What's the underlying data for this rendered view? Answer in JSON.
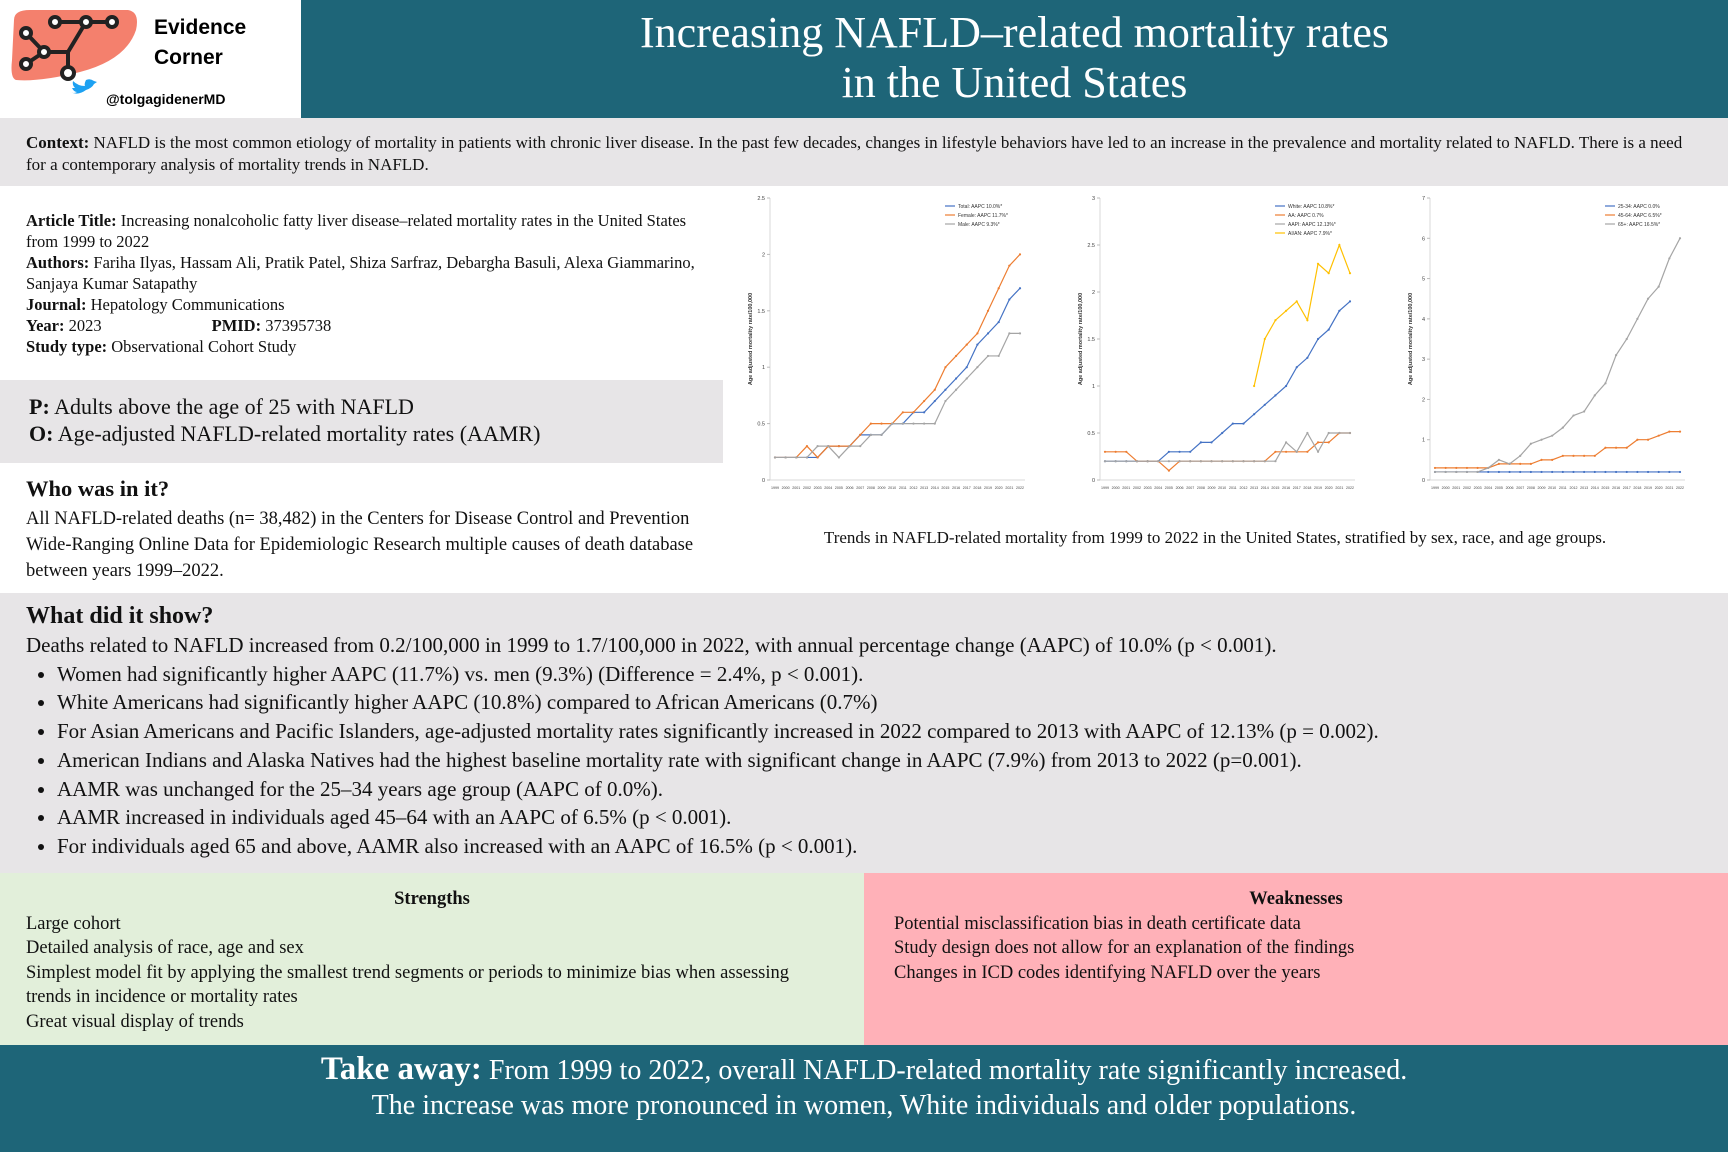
{
  "header": {
    "brand_line1": "Evidence",
    "brand_line2": "Corner",
    "handle": "@tolgagidenerMD",
    "title_line1": "Increasing NAFLD–related mortality rates",
    "title_line2": "in the United States"
  },
  "context": {
    "label": "Context:",
    "text": "NAFLD is the most common etiology of mortality in patients with chronic liver disease. In the past few decades, changes in lifestyle behaviors have led to an increase in the prevalence and mortality related to NAFLD. There is a need for a contemporary analysis of mortality trends in NAFLD."
  },
  "article": {
    "title_label": "Article Title:",
    "title": "Increasing nonalcoholic fatty liver disease–related mortality rates in the United States from 1999 to 2022",
    "authors_label": "Authors:",
    "authors": "Fariha Ilyas, Hassam Ali, Pratik Patel, Shiza Sarfraz, Debargha Basuli, Alexa Giammarino, Sanjaya Kumar Satapathy",
    "journal_label": "Journal:",
    "journal": "Hepatology Communications",
    "year_label": "Year:",
    "year": "2023",
    "pmid_label": "PMID:",
    "pmid": "37395738",
    "study_type_label": "Study type:",
    "study_type": "Observational Cohort Study"
  },
  "po": {
    "p_label": "P:",
    "p": "Adults above the age of 25 with NAFLD",
    "o_label": "O:",
    "o": "Age-adjusted NAFLD-related mortality rates (AAMR)"
  },
  "who": {
    "heading": "Who was in it?",
    "text": "All NAFLD-related deaths (n= 38,482) in the Centers for Disease Control and Prevention Wide-Ranging Online Data for Epidemiologic Research multiple causes of death database between years 1999–2022."
  },
  "chart_data": [
    {
      "type": "line",
      "y_label": "Age adjusted mortality rate/100,000",
      "categories": [
        "1999",
        "2000",
        "2001",
        "2002",
        "2003",
        "2004",
        "2005",
        "2006",
        "2007",
        "2008",
        "2009",
        "2010",
        "2011",
        "2012",
        "2013",
        "2014",
        "2015",
        "2016",
        "2017",
        "2018",
        "2019",
        "2020",
        "2021",
        "2022"
      ],
      "ylim": [
        0,
        2.5
      ],
      "yticks": [
        0,
        0.5,
        1,
        1.5,
        2,
        2.5
      ],
      "legend": "top-right",
      "series": [
        {
          "name": "Total: AAPC 10.0%*",
          "color": "#4472c4",
          "values": [
            0.2,
            0.2,
            0.2,
            0.2,
            0.2,
            0.3,
            0.3,
            0.3,
            0.4,
            0.4,
            0.4,
            0.5,
            0.5,
            0.6,
            0.6,
            0.7,
            0.8,
            0.9,
            1.0,
            1.2,
            1.3,
            1.4,
            1.6,
            1.7
          ]
        },
        {
          "name": "Female: AAPC 11.7%*",
          "color": "#ed7d31",
          "values": [
            0.2,
            0.2,
            0.2,
            0.3,
            0.2,
            0.3,
            0.3,
            0.3,
            0.4,
            0.5,
            0.5,
            0.5,
            0.6,
            0.6,
            0.7,
            0.8,
            1.0,
            1.1,
            1.2,
            1.3,
            1.5,
            1.7,
            1.9,
            2.0
          ]
        },
        {
          "name": "Male: AAPC 9.3%*",
          "color": "#a5a5a5",
          "values": [
            0.2,
            0.2,
            0.2,
            0.2,
            0.3,
            0.3,
            0.2,
            0.3,
            0.3,
            0.4,
            0.4,
            0.5,
            0.5,
            0.5,
            0.5,
            0.5,
            0.7,
            0.8,
            0.9,
            1.0,
            1.1,
            1.1,
            1.3,
            1.3
          ]
        }
      ]
    },
    {
      "type": "line",
      "y_label": "Age adjusted mortality rate/100,000",
      "categories": [
        "1999",
        "2000",
        "2001",
        "2002",
        "2003",
        "2004",
        "2005",
        "2006",
        "2007",
        "2008",
        "2009",
        "2010",
        "2011",
        "2012",
        "2013",
        "2014",
        "2015",
        "2016",
        "2017",
        "2018",
        "2019",
        "2020",
        "2021",
        "2022"
      ],
      "ylim": [
        0,
        3
      ],
      "yticks": [
        0,
        0.5,
        1,
        1.5,
        2,
        2.5,
        3
      ],
      "legend": "top-right",
      "series": [
        {
          "name": "White: AAPC 10.8%*",
          "color": "#4472c4",
          "values": [
            0.2,
            0.2,
            0.2,
            0.2,
            0.2,
            0.2,
            0.3,
            0.3,
            0.3,
            0.4,
            0.4,
            0.5,
            0.6,
            0.6,
            0.7,
            0.8,
            0.9,
            1.0,
            1.2,
            1.3,
            1.5,
            1.6,
            1.8,
            1.9
          ]
        },
        {
          "name": "AA: AAPC 0.7%",
          "color": "#ed7d31",
          "values": [
            0.3,
            0.3,
            0.3,
            0.2,
            0.2,
            0.2,
            0.1,
            0.2,
            0.2,
            0.2,
            0.2,
            0.2,
            0.2,
            0.2,
            0.2,
            0.2,
            0.3,
            0.3,
            0.3,
            0.3,
            0.4,
            0.4,
            0.5,
            0.5
          ]
        },
        {
          "name": "AAPI: AAPC 12.13%*",
          "color": "#a5a5a5",
          "values": [
            0.2,
            0.2,
            0.2,
            0.2,
            0.2,
            0.2,
            0.2,
            0.2,
            0.2,
            0.2,
            0.2,
            0.2,
            0.2,
            0.2,
            0.2,
            0.2,
            0.2,
            0.4,
            0.3,
            0.5,
            0.3,
            0.5,
            0.5,
            0.5
          ]
        },
        {
          "name": "AI/AN: AAPC 7.9%*",
          "color": "#ffc000",
          "values": [
            null,
            null,
            null,
            null,
            null,
            null,
            null,
            null,
            null,
            null,
            null,
            null,
            null,
            null,
            1.0,
            1.5,
            1.7,
            1.8,
            1.9,
            1.7,
            2.3,
            2.2,
            2.5,
            2.2
          ]
        }
      ]
    },
    {
      "type": "line",
      "y_label": "Age adjusted mortality rate/100,000",
      "categories": [
        "1999",
        "2000",
        "2001",
        "2002",
        "2003",
        "2004",
        "2005",
        "2006",
        "2007",
        "2008",
        "2009",
        "2010",
        "2011",
        "2012",
        "2013",
        "2014",
        "2015",
        "2016",
        "2017",
        "2018",
        "2019",
        "2020",
        "2021",
        "2022"
      ],
      "ylim": [
        0,
        7
      ],
      "yticks": [
        0,
        1,
        2,
        3,
        4,
        5,
        6,
        7
      ],
      "legend": "top-right",
      "series": [
        {
          "name": "25-34: AAPC 0.0%",
          "color": "#4472c4",
          "values": [
            0.2,
            0.2,
            0.2,
            0.2,
            0.2,
            0.2,
            0.2,
            0.2,
            0.2,
            0.2,
            0.2,
            0.2,
            0.2,
            0.2,
            0.2,
            0.2,
            0.2,
            0.2,
            0.2,
            0.2,
            0.2,
            0.2,
            0.2,
            0.2
          ]
        },
        {
          "name": "45-64: AAPC 6.5%*",
          "color": "#ed7d31",
          "values": [
            0.3,
            0.3,
            0.3,
            0.3,
            0.3,
            0.3,
            0.4,
            0.4,
            0.4,
            0.4,
            0.5,
            0.5,
            0.6,
            0.6,
            0.6,
            0.6,
            0.8,
            0.8,
            0.8,
            1.0,
            1.0,
            1.1,
            1.2,
            1.2
          ]
        },
        {
          "name": "65+: AAPC 16.5%*",
          "color": "#a5a5a5",
          "values": [
            0.2,
            0.2,
            0.2,
            0.2,
            0.2,
            0.3,
            0.5,
            0.4,
            0.6,
            0.9,
            1.0,
            1.1,
            1.3,
            1.6,
            1.7,
            2.1,
            2.4,
            3.1,
            3.5,
            4.0,
            4.5,
            4.8,
            5.5,
            6.0
          ]
        }
      ]
    }
  ],
  "chart_caption": "Trends in NAFLD-related mortality from 1999 to 2022 in the United States, stratified by sex, race, and age groups.",
  "findings": {
    "heading": "What did it show?",
    "intro": "Deaths related to NAFLD increased from 0.2/100,000 in 1999 to 1.7/100,000 in 2022, with annual percentage change (AAPC) of 10.0% (p < 0.001).",
    "bullets": [
      "Women had significantly higher AAPC (11.7%) vs. men (9.3%) (Difference = 2.4%, p < 0.001).",
      "White Americans had significantly higher AAPC (10.8%) compared to African Americans (0.7%)",
      "For Asian Americans and Pacific Islanders, age-adjusted mortality rates significantly increased in 2022 compared to 2013 with AAPC of 12.13% (p = 0.002).",
      "American Indians and Alaska Natives had the highest baseline mortality rate with significant change in AAPC (7.9%) from 2013 to 2022 (p=0.001).",
      "AAMR was unchanged for the 25–34 years age group (AAPC of 0.0%).",
      "AAMR increased in individuals aged 45–64 with an AAPC of 6.5% (p < 0.001).",
      "For individuals aged 65 and above, AAMR also increased with an AAPC of 16.5% (p < 0.001)."
    ]
  },
  "strengths": {
    "heading": "Strengths",
    "items": [
      "Large cohort",
      "Detailed analysis of race, age and sex",
      "Simplest model fit by applying the smallest trend segments or periods to minimize bias when assessing trends in incidence or mortality rates",
      "Great visual display of trends"
    ]
  },
  "weaknesses": {
    "heading": "Weaknesses",
    "items": [
      "Potential misclassification bias in death certificate data",
      "Study design does not allow for an explanation of the findings",
      "Changes in ICD codes identifying NAFLD over the years"
    ]
  },
  "takeaway": {
    "label": "Take away:",
    "line1": "From 1999 to 2022, overall NAFLD-related mortality rate significantly increased.",
    "line2": "The increase was more pronounced in women, White individuals and older populations."
  }
}
